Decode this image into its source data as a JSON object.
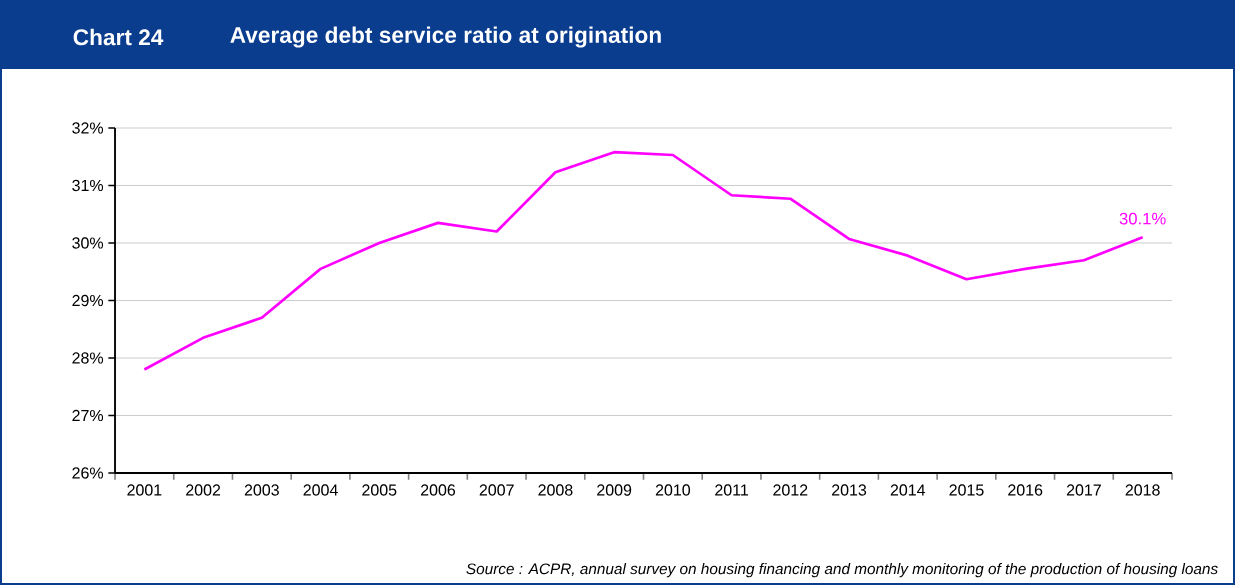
{
  "chart_data": {
    "type": "line",
    "title": "Average debt service ratio at origination",
    "categories": [
      "2001",
      "2002",
      "2003",
      "2004",
      "2005",
      "2006",
      "2007",
      "2008",
      "2009",
      "2010",
      "2011",
      "2012",
      "2013",
      "2014",
      "2015",
      "2016",
      "2017",
      "2018"
    ],
    "series": [
      {
        "color": "#ff00ff",
        "values": [
          27.8,
          28.35,
          28.7,
          29.55,
          30.0,
          30.35,
          30.2,
          31.23,
          31.58,
          31.53,
          30.83,
          30.77,
          30.07,
          29.78,
          29.37,
          29.55,
          29.7,
          30.1
        ],
        "value_labels": [
          null,
          null,
          null,
          null,
          null,
          null,
          null,
          null,
          null,
          null,
          null,
          null,
          null,
          null,
          null,
          null,
          null,
          "30.1%"
        ]
      }
    ],
    "ylim": [
      26,
      32
    ],
    "yticks": [
      {
        "value": 26,
        "label": "26%"
      },
      {
        "value": 27,
        "label": "27%"
      },
      {
        "value": 28,
        "label": "28%"
      },
      {
        "value": 29,
        "label": "29%"
      },
      {
        "value": 30,
        "label": "30%"
      },
      {
        "value": 31,
        "label": "31%"
      },
      {
        "value": 32,
        "label": "32%"
      }
    ],
    "grid": "y",
    "marker": "none",
    "line_style": "solid",
    "annotations": [
      "Chart 24",
      "Source : ACPR, annual survey on housing financing and monthly monitoring of the production of housing loans"
    ]
  }
}
